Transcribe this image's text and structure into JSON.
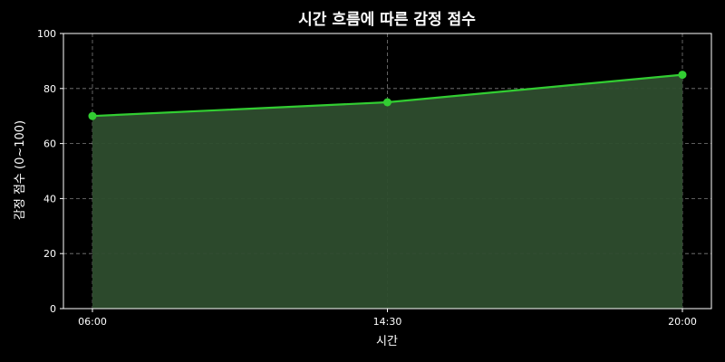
{
  "chart_data": {
    "type": "area",
    "title": "시간 흐름에 따른 감정 점수",
    "xlabel": "시간",
    "ylabel": "감정 점수 (0~100)",
    "categories": [
      "06:00",
      "14:30",
      "20:00"
    ],
    "series": [
      {
        "values": [
          70,
          75,
          85
        ]
      }
    ],
    "ylim": [
      0,
      100
    ],
    "yticks": [
      0,
      20,
      40,
      60,
      80,
      100
    ],
    "grid": true,
    "colors": {
      "line": "#32cd32",
      "fill": "#2e4d2e",
      "background": "#000000",
      "axis": "#ffffff",
      "grid": "#b0b0b0"
    }
  }
}
